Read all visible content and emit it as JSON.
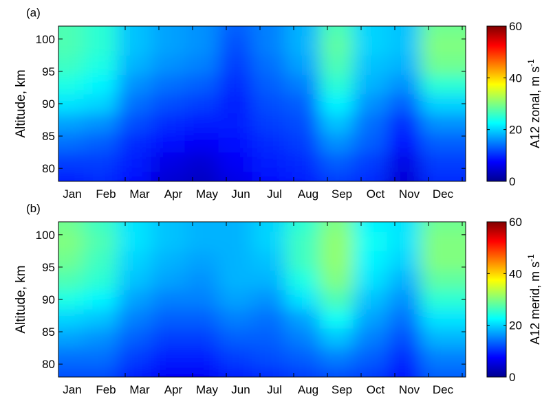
{
  "chart_data": [
    {
      "type": "heatmap",
      "panel_label": "(a)",
      "ylabel": "Altitude, km",
      "x_tick_labels": [
        "Jan",
        "Feb",
        "Mar",
        "Apr",
        "May",
        "Jun",
        "Jul",
        "Aug",
        "Sep",
        "Oct",
        "Nov",
        "Dec"
      ],
      "y_ticks": [
        80,
        85,
        90,
        95,
        100
      ],
      "ylim": [
        78,
        102
      ],
      "colorbar": {
        "label": "A12 zonal, m s",
        "label_sup": "-1",
        "ticks": [
          0,
          20,
          40,
          60
        ],
        "range": [
          0,
          60
        ],
        "colormap": "jet"
      },
      "altitudes_km": [
        78,
        81,
        84,
        87,
        90,
        93,
        96,
        99,
        102
      ],
      "z_rows_low_to_high": [
        [
          9,
          10,
          8,
          5,
          4,
          6,
          8,
          9,
          11,
          10,
          5,
          10
        ],
        [
          11,
          11,
          9,
          6,
          5,
          7,
          9,
          10,
          13,
          11,
          6,
          11
        ],
        [
          14,
          13,
          10,
          8,
          7,
          8,
          10,
          11,
          16,
          13,
          8,
          13
        ],
        [
          17,
          16,
          12,
          10,
          9,
          9,
          11,
          12,
          19,
          14,
          10,
          16
        ],
        [
          21,
          20,
          14,
          12,
          11,
          9,
          12,
          13,
          22,
          16,
          13,
          20
        ],
        [
          24,
          22,
          16,
          14,
          13,
          10,
          13,
          15,
          25,
          18,
          16,
          25
        ],
        [
          26,
          24,
          18,
          16,
          15,
          11,
          14,
          17,
          27,
          19,
          18,
          29
        ],
        [
          27,
          25,
          19,
          17,
          16,
          12,
          15,
          18,
          28,
          20,
          19,
          30
        ],
        [
          27,
          25,
          19,
          17,
          16,
          13,
          15,
          18,
          27,
          20,
          19,
          29
        ]
      ]
    },
    {
      "type": "heatmap",
      "panel_label": "(b)",
      "ylabel": "Altitude, km",
      "x_tick_labels": [
        "Jan",
        "Feb",
        "Mar",
        "Apr",
        "May",
        "Jun",
        "Jul",
        "Aug",
        "Sep",
        "Oct",
        "Nov",
        "Dec"
      ],
      "y_ticks": [
        80,
        85,
        90,
        95,
        100
      ],
      "ylim": [
        78,
        102
      ],
      "colorbar": {
        "label": "A12 merid, m s",
        "label_sup": "-1",
        "ticks": [
          0,
          20,
          40,
          60
        ],
        "range": [
          0,
          60
        ],
        "colormap": "jet"
      },
      "altitudes_km": [
        78,
        81,
        84,
        87,
        90,
        93,
        96,
        99,
        102
      ],
      "z_rows_low_to_high": [
        [
          12,
          12,
          9,
          7,
          7,
          9,
          10,
          11,
          12,
          11,
          8,
          13
        ],
        [
          14,
          14,
          11,
          9,
          9,
          11,
          12,
          13,
          15,
          13,
          10,
          15
        ],
        [
          17,
          16,
          13,
          11,
          11,
          13,
          13,
          15,
          19,
          15,
          12,
          18
        ],
        [
          20,
          19,
          15,
          13,
          13,
          15,
          14,
          17,
          23,
          17,
          14,
          21
        ],
        [
          24,
          22,
          17,
          15,
          15,
          17,
          16,
          21,
          27,
          19,
          16,
          25
        ],
        [
          27,
          25,
          19,
          17,
          16,
          18,
          18,
          24,
          30,
          21,
          18,
          28
        ],
        [
          29,
          26,
          20,
          18,
          17,
          18,
          19,
          26,
          31,
          22,
          20,
          30
        ],
        [
          30,
          27,
          21,
          19,
          18,
          18,
          20,
          26,
          31,
          23,
          21,
          30
        ],
        [
          29,
          26,
          21,
          19,
          18,
          18,
          20,
          25,
          30,
          22,
          21,
          29
        ]
      ]
    }
  ]
}
